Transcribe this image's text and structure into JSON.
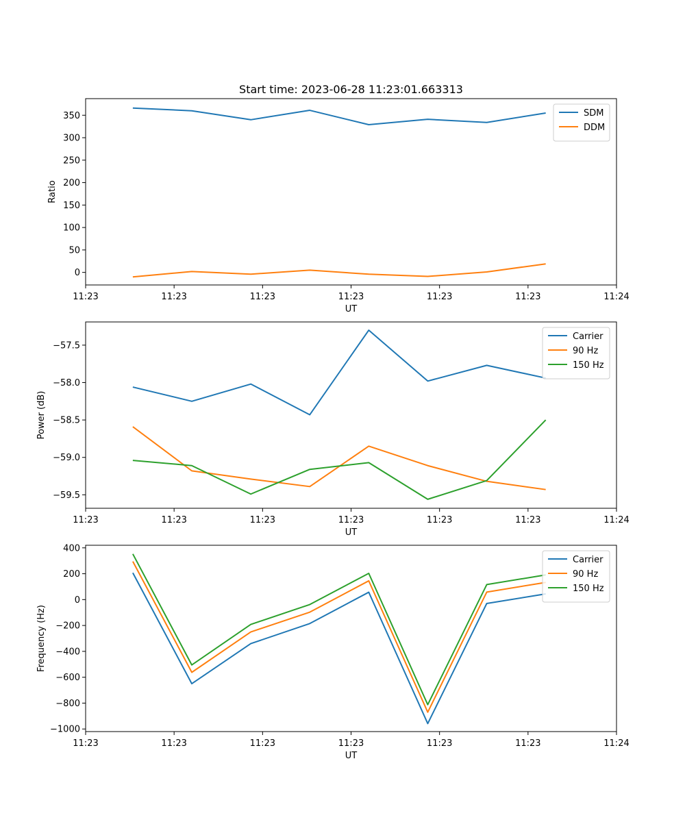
{
  "figure": {
    "title": "Start time: 2023-06-28 11:23:01.663313"
  },
  "chart_data": [
    {
      "type": "line",
      "title": "Start time: 2023-06-28 11:23:01.663313",
      "xlabel": "UT",
      "ylabel": "Ratio",
      "x": [
        1,
        2,
        3,
        4,
        5,
        6,
        7,
        8
      ],
      "xlim": [
        0.2,
        9.2
      ],
      "x_ticks": [
        0.2,
        1.7,
        3.2,
        4.7,
        6.2,
        7.7,
        9.2
      ],
      "x_tick_labels": [
        "11:23",
        "11:23",
        "11:23",
        "11:23",
        "11:23",
        "11:23",
        "11:24"
      ],
      "ylim": [
        -28,
        387
      ],
      "y_ticks": [
        0,
        50,
        100,
        150,
        200,
        250,
        300,
        350
      ],
      "y_tick_labels": [
        "0",
        "50",
        "100",
        "150",
        "200",
        "250",
        "300",
        "350"
      ],
      "grid": false,
      "legend": "top-right",
      "series": [
        {
          "name": "SDM",
          "color": "#1f77b4",
          "values": [
            366,
            360,
            340,
            361,
            329,
            341,
            334,
            355
          ]
        },
        {
          "name": "DDM",
          "color": "#ff7f0e",
          "values": [
            -10,
            2,
            -4,
            5,
            -4,
            -9,
            1,
            19
          ]
        }
      ]
    },
    {
      "type": "line",
      "title": "",
      "xlabel": "UT",
      "ylabel": "Power (dB)",
      "x": [
        1,
        2,
        3,
        4,
        5,
        6,
        7,
        8
      ],
      "xlim": [
        0.2,
        9.2
      ],
      "x_ticks": [
        0.2,
        1.7,
        3.2,
        4.7,
        6.2,
        7.7,
        9.2
      ],
      "x_tick_labels": [
        "11:23",
        "11:23",
        "11:23",
        "11:23",
        "11:23",
        "11:23",
        "11:24"
      ],
      "ylim": [
        -59.68,
        -57.19
      ],
      "y_ticks": [
        -59.5,
        -59.0,
        -58.5,
        -58.0,
        -57.5
      ],
      "y_tick_labels": [
        "−59.5",
        "−59.0",
        "−58.5",
        "−58.0",
        "−57.5"
      ],
      "grid": false,
      "legend": "top-right",
      "series": [
        {
          "name": "Carrier",
          "color": "#1f77b4",
          "values": [
            -58.06,
            -58.25,
            -58.02,
            -58.43,
            -57.3,
            -57.98,
            -57.77,
            -57.94
          ]
        },
        {
          "name": "90 Hz",
          "color": "#ff7f0e",
          "values": [
            -58.59,
            -59.18,
            -59.29,
            -59.39,
            -58.85,
            -59.11,
            -59.32,
            -59.43
          ]
        },
        {
          "name": "150 Hz",
          "color": "#2ca02c",
          "values": [
            -59.04,
            -59.11,
            -59.49,
            -59.16,
            -59.07,
            -59.56,
            -59.31,
            -58.5
          ]
        }
      ]
    },
    {
      "type": "line",
      "title": "",
      "xlabel": "UT",
      "ylabel": "Frequency (Hz)",
      "x": [
        1,
        2,
        3,
        4,
        5,
        6,
        7,
        8
      ],
      "xlim": [
        0.2,
        9.2
      ],
      "x_ticks": [
        0.2,
        1.7,
        3.2,
        4.7,
        6.2,
        7.7,
        9.2
      ],
      "x_tick_labels": [
        "11:23",
        "11:23",
        "11:23",
        "11:23",
        "11:23",
        "11:23",
        "11:24"
      ],
      "ylim": [
        -1020,
        420
      ],
      "y_ticks": [
        -1000,
        -800,
        -600,
        -400,
        -200,
        0,
        200,
        400
      ],
      "y_tick_labels": [
        "−1000",
        "−800",
        "−600",
        "−400",
        "−200",
        "0",
        "200",
        "400"
      ],
      "grid": false,
      "legend": "top-right",
      "series": [
        {
          "name": "Carrier",
          "color": "#1f77b4",
          "values": [
            207,
            -650,
            -340,
            -185,
            57,
            -958,
            -30,
            44
          ]
        },
        {
          "name": "90 Hz",
          "color": "#ff7f0e",
          "values": [
            295,
            -562,
            -250,
            -97,
            145,
            -870,
            58,
            133
          ]
        },
        {
          "name": "150 Hz",
          "color": "#2ca02c",
          "values": [
            353,
            -505,
            -192,
            -38,
            203,
            -812,
            116,
            191
          ]
        }
      ]
    }
  ]
}
